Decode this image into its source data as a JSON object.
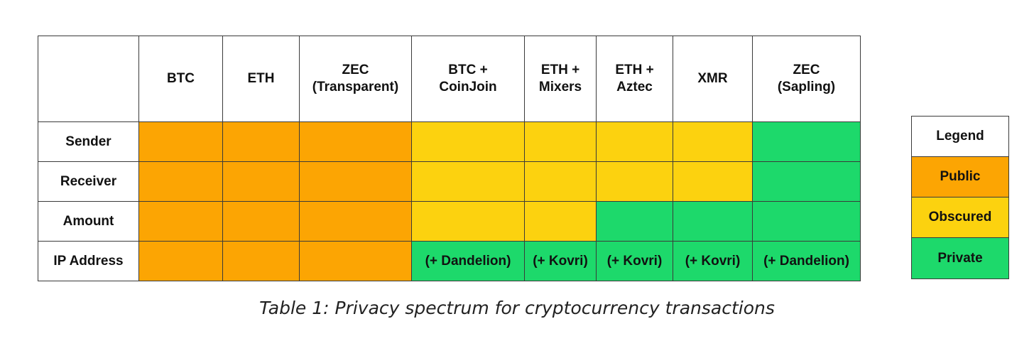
{
  "table": {
    "columns": [
      "BTC",
      "ETH",
      "ZEC\n(Transparent)",
      "BTC +\nCoinJoin",
      "ETH +\nMixers",
      "ETH +\nAztec",
      "XMR",
      "ZEC\n(Sapling)"
    ],
    "rows": [
      {
        "label": "Sender",
        "cells": [
          {
            "status": "Public",
            "text": ""
          },
          {
            "status": "Public",
            "text": ""
          },
          {
            "status": "Public",
            "text": ""
          },
          {
            "status": "Obscured",
            "text": ""
          },
          {
            "status": "Obscured",
            "text": ""
          },
          {
            "status": "Obscured",
            "text": ""
          },
          {
            "status": "Obscured",
            "text": ""
          },
          {
            "status": "Private",
            "text": ""
          }
        ]
      },
      {
        "label": "Receiver",
        "cells": [
          {
            "status": "Public",
            "text": ""
          },
          {
            "status": "Public",
            "text": ""
          },
          {
            "status": "Public",
            "text": ""
          },
          {
            "status": "Obscured",
            "text": ""
          },
          {
            "status": "Obscured",
            "text": ""
          },
          {
            "status": "Obscured",
            "text": ""
          },
          {
            "status": "Obscured",
            "text": ""
          },
          {
            "status": "Private",
            "text": ""
          }
        ]
      },
      {
        "label": "Amount",
        "cells": [
          {
            "status": "Public",
            "text": ""
          },
          {
            "status": "Public",
            "text": ""
          },
          {
            "status": "Public",
            "text": ""
          },
          {
            "status": "Obscured",
            "text": ""
          },
          {
            "status": "Obscured",
            "text": ""
          },
          {
            "status": "Private",
            "text": ""
          },
          {
            "status": "Private",
            "text": ""
          },
          {
            "status": "Private",
            "text": ""
          }
        ]
      },
      {
        "label": "IP Address",
        "cells": [
          {
            "status": "Public",
            "text": ""
          },
          {
            "status": "Public",
            "text": ""
          },
          {
            "status": "Public",
            "text": ""
          },
          {
            "status": "Private",
            "text": "(+ Dandelion)"
          },
          {
            "status": "Private",
            "text": "(+ Kovri)"
          },
          {
            "status": "Private",
            "text": "(+ Kovri)"
          },
          {
            "status": "Private",
            "text": "(+ Kovri)"
          },
          {
            "status": "Private",
            "text": "(+ Dandelion)"
          }
        ]
      }
    ]
  },
  "legend": {
    "title": "Legend",
    "items": [
      {
        "label": "Public",
        "color": "#FCA503"
      },
      {
        "label": "Obscured",
        "color": "#FCD20F"
      },
      {
        "label": "Private",
        "color": "#1DD96B"
      }
    ]
  },
  "caption": "Table 1: Privacy spectrum for cryptocurrency transactions"
}
